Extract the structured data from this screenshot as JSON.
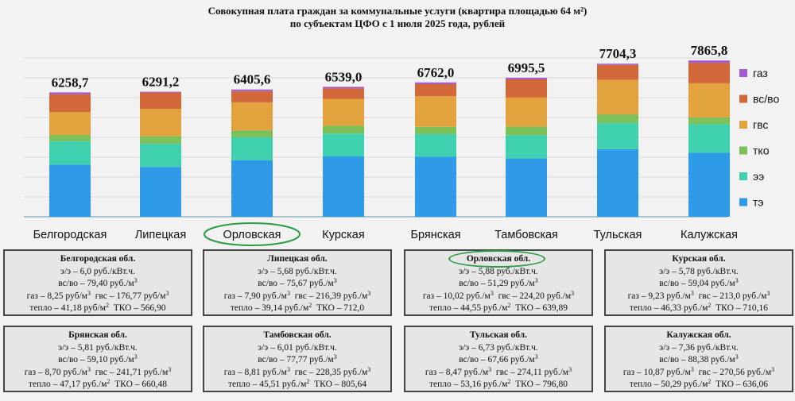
{
  "title": {
    "line1": "Совокупная плата граждан за коммунальные услуги (квартира площадью 64 м²)",
    "line2": "по субъектам ЦФО с 1 июля 2025 года, рублей"
  },
  "chart_data": {
    "type": "bar",
    "stacked": true,
    "categories": [
      "Белгородская",
      "Липецкая",
      "Орловская",
      "Курская",
      "Брянская",
      "Тамбовская",
      "Тульская",
      "Калужская"
    ],
    "totals": [
      "6258,7",
      "6291,2",
      "6405,6",
      "6539,0",
      "6762,0",
      "6995,5",
      "7704,3",
      "7865,8"
    ],
    "total_values": [
      6258.7,
      6291.2,
      6405.6,
      6539.0,
      6762.0,
      6995.5,
      7704.3,
      7865.8
    ],
    "series": [
      {
        "name": "тэ",
        "color": "#2f9be8",
        "values": [
          2624,
          2505,
          2851,
          3038,
          3018,
          2934,
          3401,
          3218
        ]
      },
      {
        "name": "ээ",
        "color": "#3fd0b0",
        "values": [
          1181,
          1166,
          1144,
          1148,
          1140,
          1172,
          1312,
          1434
        ]
      },
      {
        "name": "тко",
        "color": "#7cc05a",
        "values": [
          310,
          389,
          350,
          390,
          366,
          440,
          437,
          345
        ]
      },
      {
        "name": "гвс",
        "color": "#e2a33f",
        "values": [
          1150,
          1370,
          1415,
          1355,
          1542,
          1453,
          1741,
          1722
        ]
      },
      {
        "name": "вс/во",
        "color": "#d2683a",
        "values": [
          900,
          820,
          560,
          540,
          610,
          915,
          750,
          1030
        ]
      },
      {
        "name": "газ",
        "color": "#a35bd1",
        "values": [
          93.7,
          41.2,
          85.6,
          68.0,
          86.0,
          81.5,
          63.3,
          116.8
        ]
      }
    ],
    "legend_position": "right",
    "ylim": [
      0,
      8500
    ],
    "grid": true,
    "highlight_category": "Орловская"
  },
  "cards": [
    {
      "name": "Белгородская обл.",
      "ee": "э/э – 6,0 руб./кВт.ч.",
      "vs": "вс/во – 79,40 руб./м",
      "gaz": "газ – 8,25 руб/м",
      "gvs": "гвс – 176,77 руб/м",
      "teplo": "тепло – 41,18 руб/м",
      "tko": "ТКО – 566,90"
    },
    {
      "name": "Липецкая обл.",
      "ee": "э/э – 5,68 руб./кВт.ч.",
      "vs": "вс/во – 75,67 руб./м",
      "gaz": "газ – 7,90 руб./м",
      "gvs": "гвс – 216,39 руб./м",
      "teplo": "тепло – 39,14 руб./м",
      "tko": "ТКО – 712,0"
    },
    {
      "name": "Орловская обл.",
      "ee": "э/э – 5,88 руб./кВт.ч.",
      "vs": "вс/во – 51,29 руб./м",
      "gaz": "газ – 10,02 руб./м",
      "gvs": "гвс – 224,20 руб./м",
      "teplo": "тепло – 44,55 руб./м",
      "tko": "ТКО – 639,89"
    },
    {
      "name": "Курская обл.",
      "ee": "э/э – 5,78 руб./кВт.ч.",
      "vs": "вс/во – 59,04 руб./м",
      "gaz": "газ – 9,23 руб./м",
      "gvs": "гвс – 213,0 руб./м",
      "teplo": "тепло – 46,33 руб./м",
      "tko": "ТКО – 710,16"
    },
    {
      "name": "Брянская обл.",
      "ee": "э/э – 5,81 руб./кВт.ч.",
      "vs": "вс/во – 59,10 руб./м",
      "gaz": "газ – 8,70 руб./м",
      "gvs": "гвс – 241,71 руб./м",
      "teplo": "тепло – 47,17 руб./м",
      "tko": "ТКО – 660,48"
    },
    {
      "name": "Тамбовская обл.",
      "ee": "э/э – 6,01 руб./кВт.ч.",
      "vs": "вс/во – 77,77 руб./м",
      "gaz": "газ – 8,81 руб./м",
      "gvs": "гвс – 228,35 руб./м",
      "teplo": "тепло – 45,51 руб./м",
      "tko": "ТКО – 805,64"
    },
    {
      "name": "Тульская обл.",
      "ee": "э/э – 6,73 руб./кВт.ч.",
      "vs": "вс/во – 67,66 руб./м",
      "gaz": "газ – 8,47 руб./м",
      "gvs": "гвс – 274,11 руб./м",
      "teplo": "тепло – 53,16 руб./м",
      "tko": "ТКО – 796,80"
    },
    {
      "name": "Калужская обл.",
      "ee": "э/э – 7,36 руб./кВт.ч.",
      "vs": "вс/во – 88,38 руб./м",
      "gaz": "газ – 10,87 руб./м",
      "gvs": "гвс – 270,56 руб./м",
      "teplo": "тепло – 50,29 руб./м",
      "tko": "ТКО – 636,06"
    }
  ],
  "card_highlight_index": 2
}
